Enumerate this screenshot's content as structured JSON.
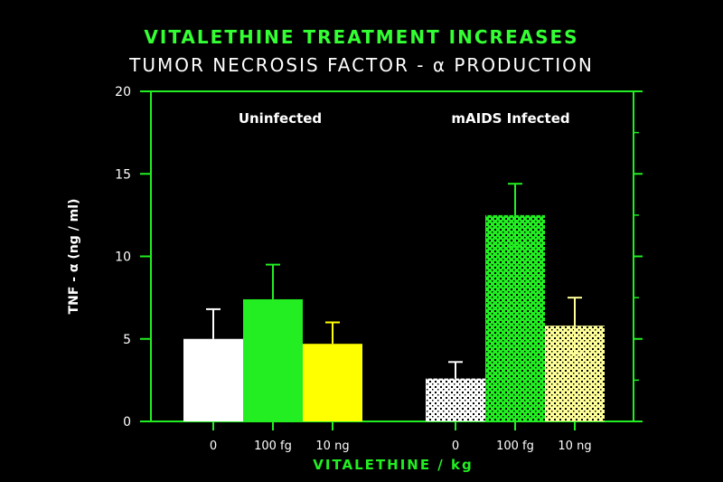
{
  "chart_data": {
    "type": "bar",
    "title": "VITALETHINE TREATMENT INCREASES",
    "subtitle": "TUMOR NECROSIS FACTOR - α PRODUCTION",
    "xlabel": "VITALETHINE / kg",
    "ylabel": "TNF - α (ng / ml)",
    "ylim": [
      0,
      20
    ],
    "yticks": [
      "0",
      "5",
      "10",
      "15",
      "20"
    ],
    "groups": [
      {
        "label": "Uninfected",
        "bars": [
          {
            "category": "0",
            "value": 5.0,
            "error": 1.8,
            "color": "#ffffff",
            "pattern": false
          },
          {
            "category": "100 fg",
            "value": 7.4,
            "error": 2.1,
            "color": "#22ee22",
            "pattern": false
          },
          {
            "category": "10 ng",
            "value": 4.7,
            "error": 1.3,
            "color": "#ffff00",
            "pattern": false
          }
        ]
      },
      {
        "label": "mAIDS Infected",
        "bars": [
          {
            "category": "0",
            "value": 2.6,
            "error": 1.0,
            "color": "#ffffff",
            "pattern": true
          },
          {
            "category": "100 fg",
            "value": 12.5,
            "error": 1.9,
            "color": "#22ee22",
            "pattern": true
          },
          {
            "category": "10 ng",
            "value": 5.8,
            "error": 1.7,
            "color": "#ffff99",
            "pattern": true
          }
        ]
      }
    ]
  }
}
